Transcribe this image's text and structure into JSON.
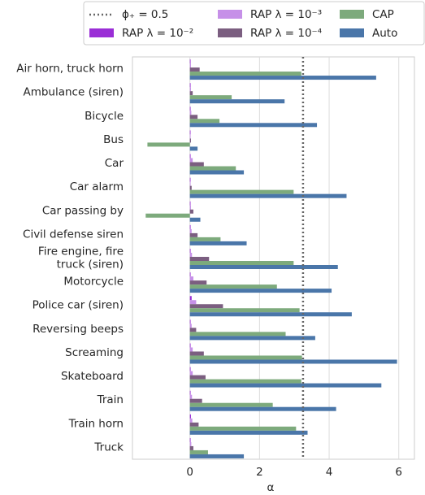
{
  "chart_data": {
    "type": "hbar",
    "xlabel": "α",
    "categories": [
      "Air horn, truck horn",
      "Ambulance (siren)",
      "Bicycle",
      "Bus",
      "Car",
      "Car alarm",
      "Car passing by",
      "Civil defense siren",
      "Fire engine, fire\ntruck (siren)",
      "Motorcycle",
      "Police car (siren)",
      "Reversing beeps",
      "Screaming",
      "Skateboard",
      "Train",
      "Train horn",
      "Truck"
    ],
    "series": [
      {
        "name": "RAP λ = 10⁻²",
        "color": "#9a2ed6",
        "values": [
          0.02,
          0.02,
          0.02,
          0.01,
          0.02,
          0.01,
          0.01,
          0.02,
          0.02,
          0.02,
          0.05,
          0.02,
          0.02,
          0.02,
          0.02,
          0.03,
          0.02
        ]
      },
      {
        "name": "RAP λ = 10⁻³",
        "color": "#c690e8",
        "values": [
          0.03,
          0.03,
          0.04,
          0.02,
          0.08,
          0.02,
          0.03,
          0.05,
          0.06,
          0.1,
          0.18,
          0.05,
          0.08,
          0.08,
          0.06,
          0.07,
          0.04
        ]
      },
      {
        "name": "RAP λ = 10⁻⁴",
        "color": "#7b5e80",
        "values": [
          0.28,
          0.08,
          0.22,
          0.03,
          0.4,
          0.05,
          0.1,
          0.22,
          0.55,
          0.48,
          0.95,
          0.18,
          0.4,
          0.45,
          0.35,
          0.25,
          0.1
        ]
      },
      {
        "name": "CAP",
        "color": "#7daa7c",
        "values": [
          3.2,
          1.2,
          0.85,
          -1.22,
          1.32,
          2.98,
          -1.27,
          0.88,
          2.98,
          2.5,
          3.15,
          2.75,
          3.22,
          3.2,
          2.38,
          3.05,
          0.52
        ]
      },
      {
        "name": "Auto",
        "color": "#4a76a9",
        "values": [
          5.35,
          2.72,
          3.65,
          0.22,
          1.55,
          4.5,
          0.3,
          1.63,
          4.25,
          4.07,
          4.65,
          3.6,
          5.95,
          5.5,
          4.2,
          3.38,
          1.55
        ]
      }
    ],
    "threshold": {
      "name": "ϕ₊ = 0.5",
      "value": 3.25,
      "color": "#666666"
    },
    "xlim": [
      -1.65,
      6.45
    ],
    "xticks": [
      0,
      2,
      4,
      6
    ],
    "grid": true
  }
}
